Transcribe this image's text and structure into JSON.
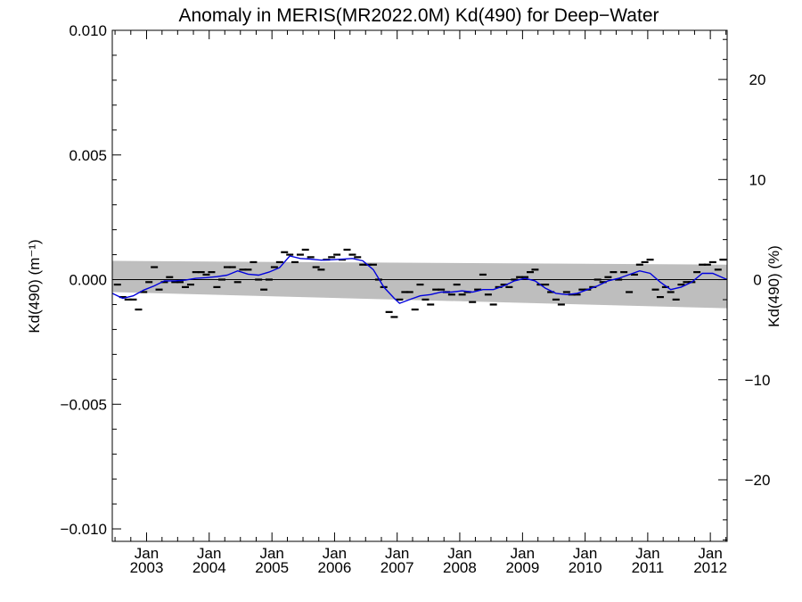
{
  "chart_data": {
    "type": "scatter",
    "title": "Anomaly in MERIS(MR2022.0M) Kd(490) for Deep−Water",
    "ylabel_left": "Kd(490) (m⁻¹)",
    "ylabel_right": "Kd(490) (%)",
    "ylim": [
      -0.0105,
      0.01
    ],
    "ylim_percent": [
      -26.15,
      24.91
    ],
    "xlim": [
      "2002-06-15",
      "2012-04-08"
    ],
    "y_ticks": [
      "0.010",
      "0.005",
      "0.000",
      "−0.005",
      "−0.010"
    ],
    "y_tick_values": [
      0.01,
      0.005,
      0.0,
      -0.005,
      -0.01
    ],
    "y2_ticks": [
      "20",
      "10",
      "0",
      "−10",
      "−20"
    ],
    "y2_tick_values": [
      20,
      10,
      0,
      -10,
      -20
    ],
    "x_ticks": [
      {
        "date": "2003-01-01",
        "month": "Jan",
        "year": "2003"
      },
      {
        "date": "2004-01-01",
        "month": "Jan",
        "year": "2004"
      },
      {
        "date": "2005-01-01",
        "month": "Jan",
        "year": "2005"
      },
      {
        "date": "2006-01-01",
        "month": "Jan",
        "year": "2006"
      },
      {
        "date": "2007-01-01",
        "month": "Jan",
        "year": "2007"
      },
      {
        "date": "2008-01-01",
        "month": "Jan",
        "year": "2008"
      },
      {
        "date": "2009-01-01",
        "month": "Jan",
        "year": "2009"
      },
      {
        "date": "2010-01-01",
        "month": "Jan",
        "year": "2010"
      },
      {
        "date": "2011-01-01",
        "month": "Jan",
        "year": "2011"
      },
      {
        "date": "2012-01-01",
        "month": "Jan",
        "year": "2012"
      }
    ],
    "band": {
      "start_date": "2002-06-15",
      "end_date": "2012-04-08",
      "upper_start": 0.00075,
      "upper_end": 0.0006,
      "lower_start": -0.0005,
      "lower_end": -0.00115
    },
    "points": [
      {
        "date": "2002-07-15",
        "y": -0.0002
      },
      {
        "date": "2002-08-15",
        "y": -0.0007
      },
      {
        "date": "2002-09-15",
        "y": -0.0008
      },
      {
        "date": "2002-10-15",
        "y": -0.0008
      },
      {
        "date": "2002-11-15",
        "y": -0.0012
      },
      {
        "date": "2002-12-15",
        "y": -0.0005
      },
      {
        "date": "2003-01-15",
        "y": -0.0001
      },
      {
        "date": "2003-02-15",
        "y": 0.0005
      },
      {
        "date": "2003-03-15",
        "y": -0.0004
      },
      {
        "date": "2003-04-15",
        "y": -0.0001
      },
      {
        "date": "2003-05-15",
        "y": 0.0001
      },
      {
        "date": "2003-06-15",
        "y": -0.0001
      },
      {
        "date": "2003-07-15",
        "y": -0.0001
      },
      {
        "date": "2003-08-15",
        "y": -0.0003
      },
      {
        "date": "2003-09-15",
        "y": -0.0002
      },
      {
        "date": "2003-10-15",
        "y": 0.0003
      },
      {
        "date": "2003-11-15",
        "y": 0.0003
      },
      {
        "date": "2003-12-15",
        "y": 0.0002
      },
      {
        "date": "2004-01-15",
        "y": 0.0003
      },
      {
        "date": "2004-02-15",
        "y": -0.0003
      },
      {
        "date": "2004-03-15",
        "y": 0.0
      },
      {
        "date": "2004-04-15",
        "y": 0.0005
      },
      {
        "date": "2004-05-15",
        "y": 0.0005
      },
      {
        "date": "2004-06-15",
        "y": -0.0001
      },
      {
        "date": "2004-07-15",
        "y": 0.0004
      },
      {
        "date": "2004-08-15",
        "y": 0.0004
      },
      {
        "date": "2004-09-15",
        "y": 0.0007
      },
      {
        "date": "2004-10-15",
        "y": 0.0
      },
      {
        "date": "2004-11-15",
        "y": -0.0004
      },
      {
        "date": "2004-12-15",
        "y": 0.0
      },
      {
        "date": "2005-01-15",
        "y": 0.0005
      },
      {
        "date": "2005-02-15",
        "y": 0.0007
      },
      {
        "date": "2005-03-15",
        "y": 0.0011
      },
      {
        "date": "2005-04-15",
        "y": 0.001
      },
      {
        "date": "2005-05-15",
        "y": 0.0007
      },
      {
        "date": "2005-06-15",
        "y": 0.001
      },
      {
        "date": "2005-07-15",
        "y": 0.0012
      },
      {
        "date": "2005-08-15",
        "y": 0.0009
      },
      {
        "date": "2005-09-15",
        "y": 0.0005
      },
      {
        "date": "2005-10-15",
        "y": 0.0004
      },
      {
        "date": "2005-11-15",
        "y": 0.0008
      },
      {
        "date": "2005-12-15",
        "y": 0.0009
      },
      {
        "date": "2006-01-15",
        "y": 0.001
      },
      {
        "date": "2006-02-15",
        "y": 0.0008
      },
      {
        "date": "2006-03-15",
        "y": 0.0012
      },
      {
        "date": "2006-04-15",
        "y": 0.001
      },
      {
        "date": "2006-05-15",
        "y": 0.0009
      },
      {
        "date": "2006-06-15",
        "y": 0.0006
      },
      {
        "date": "2006-07-15",
        "y": 0.0006
      },
      {
        "date": "2006-08-15",
        "y": 0.0006
      },
      {
        "date": "2006-09-15",
        "y": 0.0
      },
      {
        "date": "2006-10-15",
        "y": -0.0003
      },
      {
        "date": "2006-11-15",
        "y": -0.0013
      },
      {
        "date": "2006-12-15",
        "y": -0.0015
      },
      {
        "date": "2007-01-15",
        "y": -0.0008
      },
      {
        "date": "2007-02-15",
        "y": -0.0005
      },
      {
        "date": "2007-03-15",
        "y": -0.0005
      },
      {
        "date": "2007-04-15",
        "y": -0.0012
      },
      {
        "date": "2007-05-15",
        "y": -0.0002
      },
      {
        "date": "2007-06-15",
        "y": -0.0008
      },
      {
        "date": "2007-07-15",
        "y": -0.001
      },
      {
        "date": "2007-08-15",
        "y": -0.0004
      },
      {
        "date": "2007-09-15",
        "y": -0.0004
      },
      {
        "date": "2007-10-15",
        "y": -0.0005
      },
      {
        "date": "2007-11-15",
        "y": -0.0006
      },
      {
        "date": "2007-12-15",
        "y": -0.0002
      },
      {
        "date": "2008-01-15",
        "y": -0.0006
      },
      {
        "date": "2008-02-15",
        "y": -0.0005
      },
      {
        "date": "2008-03-15",
        "y": -0.0009
      },
      {
        "date": "2008-04-15",
        "y": -0.0004
      },
      {
        "date": "2008-05-15",
        "y": 0.0002
      },
      {
        "date": "2008-06-15",
        "y": -0.0006
      },
      {
        "date": "2008-07-15",
        "y": -0.001
      },
      {
        "date": "2008-08-15",
        "y": -0.0003
      },
      {
        "date": "2008-09-15",
        "y": -0.0002
      },
      {
        "date": "2008-10-15",
        "y": -0.0003
      },
      {
        "date": "2008-11-15",
        "y": 0.0
      },
      {
        "date": "2008-12-15",
        "y": 0.0001
      },
      {
        "date": "2009-01-15",
        "y": 0.0001
      },
      {
        "date": "2009-02-15",
        "y": 0.0003
      },
      {
        "date": "2009-03-15",
        "y": 0.0004
      },
      {
        "date": "2009-04-15",
        "y": -0.0002
      },
      {
        "date": "2009-05-15",
        "y": -0.0002
      },
      {
        "date": "2009-06-15",
        "y": -0.0005
      },
      {
        "date": "2009-07-15",
        "y": -0.0008
      },
      {
        "date": "2009-08-15",
        "y": -0.001
      },
      {
        "date": "2009-09-15",
        "y": -0.0005
      },
      {
        "date": "2009-10-15",
        "y": -0.0006
      },
      {
        "date": "2009-11-15",
        "y": -0.0006
      },
      {
        "date": "2009-12-15",
        "y": -0.0004
      },
      {
        "date": "2010-01-15",
        "y": -0.0004
      },
      {
        "date": "2010-02-15",
        "y": -0.0003
      },
      {
        "date": "2010-03-15",
        "y": 0.0
      },
      {
        "date": "2010-04-15",
        "y": -0.0001
      },
      {
        "date": "2010-05-15",
        "y": 0.0001
      },
      {
        "date": "2010-06-15",
        "y": 0.0003
      },
      {
        "date": "2010-07-15",
        "y": 0.0
      },
      {
        "date": "2010-08-15",
        "y": 0.0003
      },
      {
        "date": "2010-09-15",
        "y": -0.0005
      },
      {
        "date": "2010-10-15",
        "y": 0.0002
      },
      {
        "date": "2010-11-15",
        "y": 0.0006
      },
      {
        "date": "2010-12-15",
        "y": 0.0007
      },
      {
        "date": "2011-01-15",
        "y": 0.0008
      },
      {
        "date": "2011-02-15",
        "y": -0.0004
      },
      {
        "date": "2011-03-15",
        "y": -0.0007
      },
      {
        "date": "2011-04-15",
        "y": -0.0003
      },
      {
        "date": "2011-05-15",
        "y": -0.0005
      },
      {
        "date": "2011-06-15",
        "y": -0.0008
      },
      {
        "date": "2011-07-15",
        "y": -0.0002
      },
      {
        "date": "2011-08-15",
        "y": -0.0001
      },
      {
        "date": "2011-09-15",
        "y": -0.0001
      },
      {
        "date": "2011-10-15",
        "y": 0.0003
      },
      {
        "date": "2011-11-15",
        "y": 0.0006
      },
      {
        "date": "2011-12-15",
        "y": 0.0006
      },
      {
        "date": "2012-01-15",
        "y": 0.0007
      },
      {
        "date": "2012-02-15",
        "y": 0.0004
      },
      {
        "date": "2012-03-15",
        "y": 0.0008
      }
    ],
    "running_mean": [
      {
        "date": "2002-06-15",
        "y": -0.00055
      },
      {
        "date": "2002-08-15",
        "y": -0.00075
      },
      {
        "date": "2002-10-15",
        "y": -0.00065
      },
      {
        "date": "2002-12-15",
        "y": -0.00042
      },
      {
        "date": "2003-02-15",
        "y": -0.00025
      },
      {
        "date": "2003-04-15",
        "y": -5e-05
      },
      {
        "date": "2003-06-15",
        "y": -5e-05
      },
      {
        "date": "2003-08-15",
        "y": -2e-05
      },
      {
        "date": "2003-10-15",
        "y": 5e-05
      },
      {
        "date": "2003-12-15",
        "y": 8e-05
      },
      {
        "date": "2004-02-15",
        "y": 0.00012
      },
      {
        "date": "2004-04-15",
        "y": 0.00018
      },
      {
        "date": "2004-06-15",
        "y": 0.00035
      },
      {
        "date": "2004-08-15",
        "y": 0.00022
      },
      {
        "date": "2004-10-15",
        "y": 0.00018
      },
      {
        "date": "2004-12-15",
        "y": 0.0003
      },
      {
        "date": "2005-02-15",
        "y": 0.00048
      },
      {
        "date": "2005-04-15",
        "y": 0.00095
      },
      {
        "date": "2005-06-15",
        "y": 0.00085
      },
      {
        "date": "2005-08-15",
        "y": 0.00082
      },
      {
        "date": "2005-10-15",
        "y": 0.00078
      },
      {
        "date": "2005-12-15",
        "y": 0.0008
      },
      {
        "date": "2006-02-15",
        "y": 0.00082
      },
      {
        "date": "2006-04-15",
        "y": 0.00085
      },
      {
        "date": "2006-06-15",
        "y": 0.00075
      },
      {
        "date": "2006-08-15",
        "y": 0.0004
      },
      {
        "date": "2006-10-15",
        "y": -0.0003
      },
      {
        "date": "2006-12-15",
        "y": -0.00075
      },
      {
        "date": "2007-01-15",
        "y": -0.00095
      },
      {
        "date": "2007-03-15",
        "y": -0.0008
      },
      {
        "date": "2007-05-15",
        "y": -0.00065
      },
      {
        "date": "2007-07-15",
        "y": -0.0006
      },
      {
        "date": "2007-09-15",
        "y": -0.0005
      },
      {
        "date": "2007-11-15",
        "y": -0.0005
      },
      {
        "date": "2008-01-15",
        "y": -0.00045
      },
      {
        "date": "2008-03-15",
        "y": -0.0005
      },
      {
        "date": "2008-05-15",
        "y": -0.0004
      },
      {
        "date": "2008-07-15",
        "y": -0.0004
      },
      {
        "date": "2008-09-15",
        "y": -0.00025
      },
      {
        "date": "2008-11-15",
        "y": -5e-05
      },
      {
        "date": "2009-01-15",
        "y": 5e-05
      },
      {
        "date": "2009-03-15",
        "y": -5e-05
      },
      {
        "date": "2009-05-15",
        "y": -0.00035
      },
      {
        "date": "2009-07-15",
        "y": -0.00055
      },
      {
        "date": "2009-09-15",
        "y": -0.0006
      },
      {
        "date": "2009-11-15",
        "y": -0.00055
      },
      {
        "date": "2010-01-15",
        "y": -0.0004
      },
      {
        "date": "2010-03-15",
        "y": -0.00025
      },
      {
        "date": "2010-05-15",
        "y": -5e-05
      },
      {
        "date": "2010-07-15",
        "y": 5e-05
      },
      {
        "date": "2010-09-15",
        "y": 0.0002
      },
      {
        "date": "2010-11-15",
        "y": 0.00035
      },
      {
        "date": "2011-01-15",
        "y": 0.00025
      },
      {
        "date": "2011-03-15",
        "y": -0.0001
      },
      {
        "date": "2011-05-15",
        "y": -0.0004
      },
      {
        "date": "2011-07-15",
        "y": -0.0003
      },
      {
        "date": "2011-09-15",
        "y": -0.0001
      },
      {
        "date": "2011-11-15",
        "y": 0.00025
      },
      {
        "date": "2012-01-15",
        "y": 0.00025
      },
      {
        "date": "2012-04-08",
        "y": 0.0
      }
    ],
    "colors": {
      "band": "#bebebe",
      "running_mean": "#0000dd",
      "points": "#000000",
      "axes": "#000000",
      "zero_line": "#000000"
    }
  }
}
